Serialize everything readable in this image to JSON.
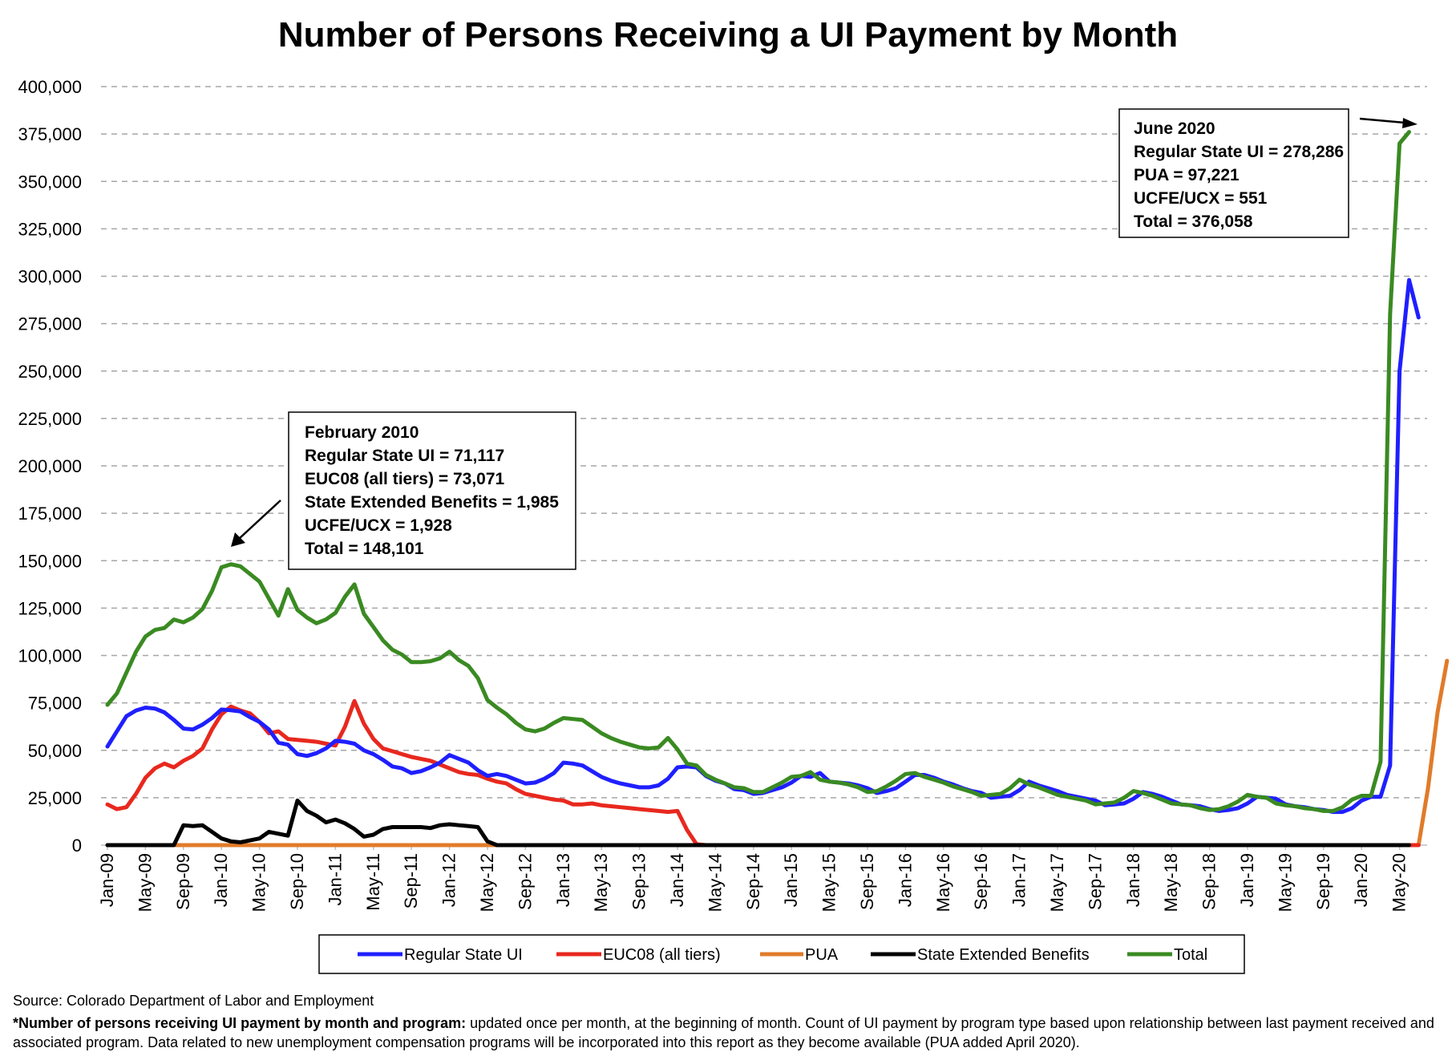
{
  "chart_data": {
    "type": "line",
    "title": "Number of Persons Receiving a UI Payment by Month",
    "xlabel": "",
    "ylabel": "",
    "ylim": [
      0,
      400000
    ],
    "y_ticks": [
      "0",
      "25,000",
      "50,000",
      "75,000",
      "100,000",
      "125,000",
      "150,000",
      "175,000",
      "200,000",
      "225,000",
      "250,000",
      "275,000",
      "300,000",
      "325,000",
      "350,000",
      "375,000",
      "400,000"
    ],
    "grid": "horizontal dashed",
    "x_start": "Jan-09",
    "x_tick_labels": [
      "Jan-09",
      "May-09",
      "Sep-09",
      "Jan-10",
      "May-10",
      "Sep-10",
      "Jan-11",
      "May-11",
      "Sep-11",
      "Jan-12",
      "May-12",
      "Sep-12",
      "Jan-13",
      "May-13",
      "Sep-13",
      "Jan-14",
      "May-14",
      "Sep-14",
      "Jan-15",
      "May-15",
      "Sep-15",
      "Jan-16",
      "May-16",
      "Sep-16",
      "Jan-17",
      "May-17",
      "Sep-17",
      "Jan-18",
      "May-18",
      "Sep-18",
      "Jan-19",
      "May-19",
      "Sep-19",
      "Jan-20",
      "May-20"
    ],
    "legend_position": "bottom",
    "series": [
      {
        "name": "Regular State UI",
        "color": "#1f1fff",
        "values": [
          52000,
          60000,
          68000,
          71000,
          72500,
          72000,
          70000,
          66000,
          61500,
          61000,
          63500,
          67000,
          71500,
          71117,
          70500,
          67500,
          65000,
          61000,
          54000,
          53000,
          48000,
          47000,
          48500,
          51000,
          55000,
          54500,
          53500,
          50000,
          48000,
          45000,
          41500,
          40500,
          38000,
          39000,
          41000,
          43500,
          47500,
          45500,
          43500,
          39500,
          36500,
          37500,
          36500,
          34500,
          32500,
          33000,
          35000,
          38000,
          43500,
          43000,
          42000,
          39000,
          36000,
          34000,
          32500,
          31500,
          30500,
          30500,
          31500,
          35000,
          41000,
          41500,
          41000,
          36500,
          34000,
          32500,
          29500,
          29000,
          27000,
          27500,
          29000,
          30500,
          33000,
          36500,
          36000,
          38000,
          33500,
          33000,
          32500,
          31500,
          30000,
          27500,
          28500,
          30000,
          33500,
          37000,
          37000,
          35500,
          33500,
          32000,
          30000,
          28500,
          27500,
          25000,
          25500,
          26000,
          29000,
          33500,
          31500,
          30000,
          28500,
          26500,
          25500,
          24500,
          23500,
          21000,
          21500,
          22000,
          24500,
          28000,
          27000,
          25500,
          23500,
          21500,
          21000,
          20500,
          19000,
          18000,
          18500,
          19500,
          22000,
          25500,
          25000,
          24500,
          21500,
          20500,
          20000,
          19000,
          18500,
          17500,
          17500,
          19500,
          23500,
          25500,
          25500,
          42000,
          250000,
          298000,
          278286
        ]
      },
      {
        "name": "EUC08 (all tiers)",
        "color": "#e8281e",
        "values": [
          21500,
          19000,
          20000,
          27000,
          35500,
          40500,
          43000,
          41000,
          44500,
          47000,
          51000,
          61000,
          69000,
          73071,
          71000,
          69500,
          65000,
          59000,
          60000,
          56000,
          55500,
          55000,
          54500,
          53500,
          52500,
          62500,
          76000,
          64000,
          56000,
          51000,
          49500,
          48000,
          46500,
          45500,
          44500,
          42500,
          40500,
          38500,
          37500,
          37000,
          35000,
          33500,
          32500,
          29500,
          27000,
          26000,
          25000,
          24000,
          23500,
          21500,
          21500,
          22000,
          21000,
          20500,
          20000,
          19500,
          19000,
          18500,
          18000,
          17500,
          18000,
          8000,
          500,
          0,
          0,
          0,
          0,
          0,
          0,
          0,
          0,
          0,
          0,
          0,
          0,
          0,
          0,
          0,
          0,
          0,
          0,
          0,
          0,
          0,
          0,
          0,
          0,
          0,
          0,
          0,
          0,
          0,
          0,
          0,
          0,
          0,
          0,
          0,
          0,
          0,
          0,
          0,
          0,
          0,
          0,
          0,
          0,
          0,
          0,
          0,
          0,
          0,
          0,
          0,
          0,
          0,
          0,
          0,
          0,
          0,
          0,
          0,
          0,
          0,
          0,
          0,
          0,
          0,
          0,
          0,
          0,
          0,
          0,
          0,
          0,
          0,
          0,
          0,
          0
        ]
      },
      {
        "name": "PUA",
        "color": "#e07b2a",
        "values": [
          0,
          0,
          0,
          0,
          0,
          0,
          0,
          0,
          0,
          0,
          0,
          0,
          0,
          0,
          0,
          0,
          0,
          0,
          0,
          0,
          0,
          0,
          0,
          0,
          0,
          0,
          0,
          0,
          0,
          0,
          0,
          0,
          0,
          0,
          0,
          0,
          0,
          0,
          0,
          0,
          0,
          0,
          0,
          0,
          0,
          0,
          0,
          0,
          0,
          0,
          0,
          0,
          0,
          0,
          0,
          0,
          0,
          0,
          0,
          0,
          0,
          0,
          0,
          0,
          0,
          0,
          0,
          0,
          0,
          0,
          0,
          0,
          0,
          0,
          0,
          0,
          0,
          0,
          0,
          0,
          0,
          0,
          0,
          0,
          0,
          0,
          0,
          0,
          0,
          0,
          0,
          0,
          0,
          0,
          0,
          0,
          0,
          0,
          0,
          0,
          0,
          0,
          0,
          0,
          0,
          0,
          0,
          0,
          0,
          0,
          0,
          0,
          0,
          0,
          0,
          0,
          0,
          0,
          0,
          0,
          0,
          0,
          0,
          0,
          0,
          0,
          0,
          0,
          0,
          0,
          0,
          0,
          0,
          0,
          0,
          0,
          0,
          0,
          0,
          30000,
          70000,
          97221
        ]
      },
      {
        "name": "State Extended Benefits",
        "color": "#000000",
        "values": [
          0,
          0,
          0,
          0,
          0,
          0,
          0,
          0,
          10500,
          10000,
          10500,
          7000,
          3500,
          1985,
          1500,
          2500,
          3500,
          7000,
          6000,
          5000,
          23500,
          18000,
          15500,
          12000,
          13500,
          11500,
          8500,
          4500,
          5500,
          8500,
          9500,
          9500,
          9500,
          9500,
          9000,
          10500,
          11000,
          10500,
          10000,
          9500,
          2000,
          0,
          0,
          0,
          0,
          0,
          0,
          0,
          0,
          0,
          0,
          0,
          0,
          0,
          0,
          0,
          0,
          0,
          0,
          0,
          0,
          0,
          0,
          0,
          0,
          0,
          0,
          0,
          0,
          0,
          0,
          0,
          0,
          0,
          0,
          0,
          0,
          0,
          0,
          0,
          0,
          0,
          0,
          0,
          0,
          0,
          0,
          0,
          0,
          0,
          0,
          0,
          0,
          0,
          0,
          0,
          0,
          0,
          0,
          0,
          0,
          0,
          0,
          0,
          0,
          0,
          0,
          0,
          0,
          0,
          0,
          0,
          0,
          0,
          0,
          0,
          0,
          0,
          0,
          0,
          0,
          0,
          0,
          0,
          0,
          0,
          0,
          0,
          0,
          0,
          0,
          0,
          0,
          0,
          0,
          0,
          0,
          0
        ]
      },
      {
        "name": "Total",
        "color": "#3a8a22",
        "values": [
          74000,
          80000,
          91000,
          102000,
          110000,
          113500,
          114500,
          119000,
          117500,
          120000,
          124500,
          134000,
          146500,
          148101,
          147000,
          143000,
          139000,
          130000,
          121000,
          135000,
          124000,
          120000,
          117000,
          119000,
          122500,
          131000,
          137500,
          122000,
          115000,
          108000,
          103000,
          100500,
          96500,
          96500,
          97000,
          98500,
          102000,
          97500,
          94500,
          88000,
          76500,
          72500,
          69000,
          64500,
          61000,
          60000,
          61500,
          64500,
          67000,
          66500,
          66000,
          62500,
          59000,
          56500,
          54500,
          53000,
          51500,
          51000,
          51500,
          56500,
          50500,
          43000,
          42000,
          37000,
          34500,
          32500,
          30500,
          30000,
          28000,
          28000,
          30500,
          33000,
          36000,
          36500,
          38500,
          34500,
          33500,
          33000,
          32000,
          30500,
          28000,
          28500,
          31000,
          34000,
          37500,
          38000,
          36000,
          34500,
          33000,
          31000,
          29500,
          28000,
          26000,
          26500,
          27000,
          30000,
          34500,
          32000,
          30500,
          28500,
          26500,
          25500,
          24500,
          23500,
          21500,
          22000,
          22500,
          25000,
          28500,
          27500,
          26000,
          24000,
          22000,
          21500,
          21000,
          19500,
          18500,
          19000,
          20500,
          23000,
          26500,
          25500,
          25000,
          22000,
          21000,
          20500,
          19500,
          19000,
          18000,
          18000,
          20000,
          24000,
          26000,
          26000,
          44000,
          280000,
          370000,
          376058
        ]
      }
    ],
    "annotations": [
      {
        "points_to": "Feb-10",
        "lines": [
          "February 2010",
          "Regular State UI = 71,117",
          "EUC08 (all tiers) = 73,071",
          "State Extended Benefits = 1,985",
          "UCFE/UCX = 1,928",
          "Total = 148,101"
        ]
      },
      {
        "points_to": "Jun-20",
        "lines": [
          "June 2020",
          "Regular State UI = 278,286",
          "PUA = 97,221",
          "UCFE/UCX = 551",
          "Total = 376,058"
        ]
      }
    ]
  },
  "footer": {
    "source": "Source: Colorado Department of Labor and Employment",
    "note_bold": "*Number of persons receiving UI payment by month and program:",
    "note_text": " updated once per month, at the beginning of month. Count of UI payment by program type based upon relationship between last payment received and associated program. Data related to new unemployment compensation programs will be incorporated into this report as they become available (PUA added April 2020)."
  }
}
